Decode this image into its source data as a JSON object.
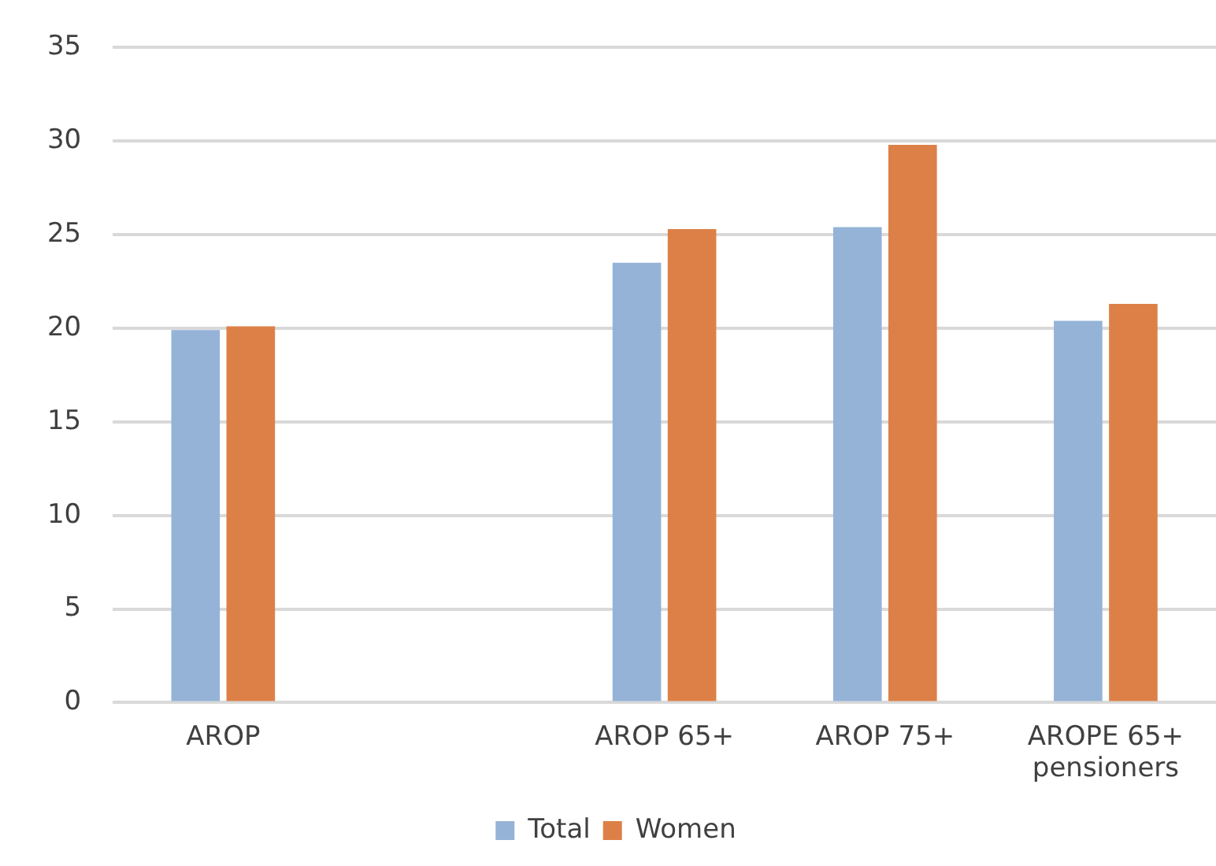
{
  "chart_data": {
    "type": "bar",
    "categories": [
      "AROP",
      null,
      "AROP 65+",
      "AROP 75+",
      "AROPE 65+ pensioners"
    ],
    "series": [
      {
        "name": "Total",
        "color": "#95b3d7",
        "values": [
          19.9,
          null,
          23.5,
          25.4,
          20.4
        ]
      },
      {
        "name": "Women",
        "color": "#dd8047",
        "values": [
          20.1,
          null,
          25.3,
          29.8,
          21.3
        ]
      }
    ],
    "ylim": [
      0,
      35
    ],
    "yticks": [
      0,
      5,
      10,
      15,
      20,
      25,
      30,
      35
    ],
    "grid": "y",
    "legend": "bottom"
  }
}
